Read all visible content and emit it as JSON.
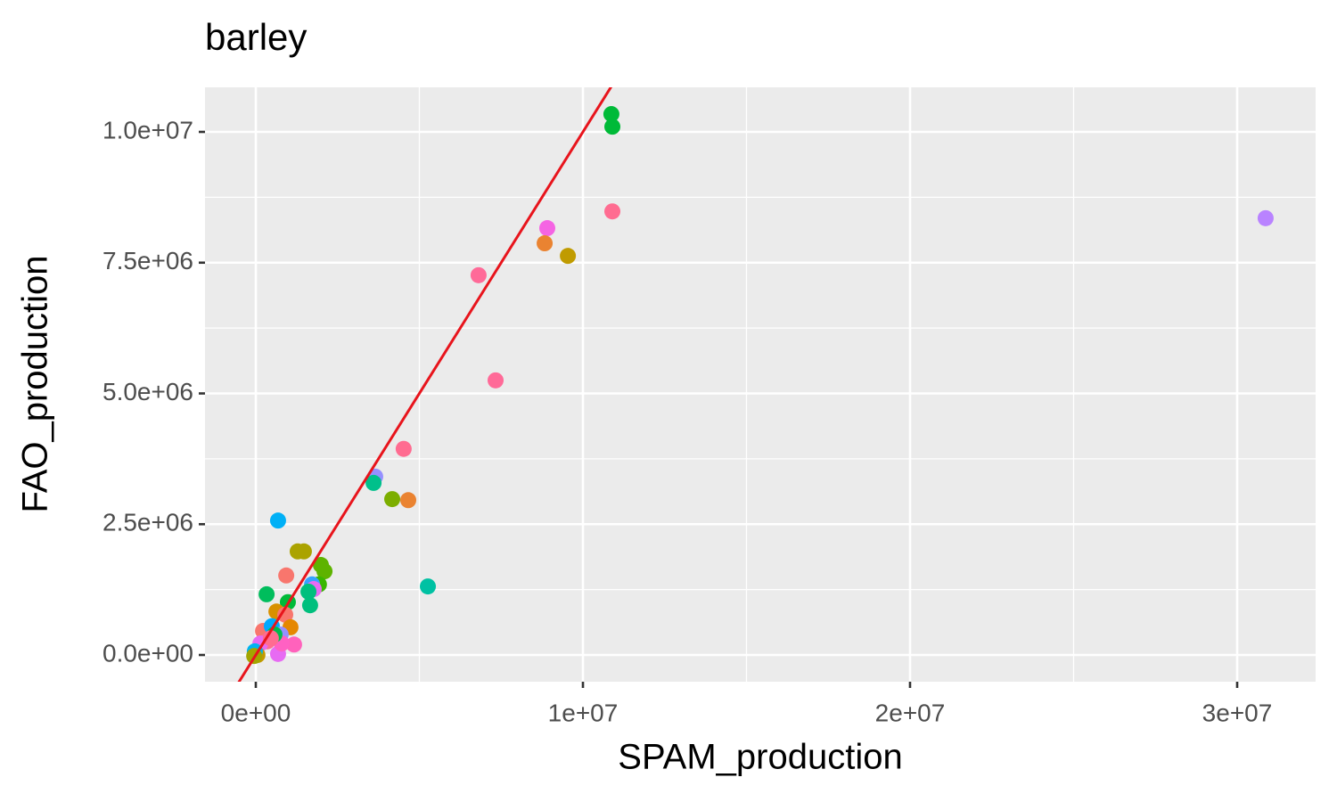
{
  "chart_data": {
    "type": "scatter",
    "title": "barley",
    "x_label": "SPAM_production",
    "y_label": "FAO_production",
    "xlim": [
      -1553000,
      32398000
    ],
    "ylim": [
      -511000,
      10852000
    ],
    "xticks": [
      {
        "value": 0,
        "label": "0e+00"
      },
      {
        "value": 10000000,
        "label": "1e+07"
      },
      {
        "value": 20000000,
        "label": "2e+07"
      },
      {
        "value": 30000000,
        "label": "3e+07"
      }
    ],
    "yticks": [
      {
        "value": 0,
        "label": "0.0e+00"
      },
      {
        "value": 2500000,
        "label": "2.5e+06"
      },
      {
        "value": 5000000,
        "label": "5.0e+06"
      },
      {
        "value": 7500000,
        "label": "7.5e+06"
      },
      {
        "value": 10000000,
        "label": "1.0e+07"
      }
    ],
    "x_minor_breaks": [
      5000000,
      15000000,
      25000000
    ],
    "y_minor_breaks": [
      1250000,
      3750000,
      6250000,
      8750000
    ],
    "grid": true,
    "reference_line": {
      "slope": 1,
      "intercept": 0,
      "color": "#e8141c"
    },
    "x": [
      10870000,
      10900000,
      10900000,
      30870000,
      8910000,
      8830000,
      9540000,
      6810000,
      7330000,
      4520000,
      3650000,
      3600000,
      4170000,
      4660000,
      680000,
      5260000,
      1280000,
      1470000,
      1990000,
      2100000,
      930000,
      1930000,
      1720000,
      1770000,
      1610000,
      330000,
      1660000,
      980000,
      630000,
      900000,
      1060000,
      220000,
      490000,
      760000,
      1170000,
      680000,
      790000,
      350000,
      140000,
      0,
      50000,
      -30000,
      -50000,
      570000,
      460000
    ],
    "y": [
      10340000,
      10100000,
      8480000,
      8350000,
      8160000,
      7870000,
      7630000,
      7260000,
      5250000,
      3940000,
      3410000,
      3290000,
      2980000,
      2960000,
      2570000,
      1310000,
      1980000,
      1980000,
      1720000,
      1600000,
      1520000,
      1350000,
      1350000,
      1260000,
      1210000,
      1160000,
      950000,
      1010000,
      830000,
      770000,
      530000,
      460000,
      550000,
      390000,
      200000,
      20000,
      220000,
      260000,
      220000,
      30000,
      0,
      70000,
      -20000,
      390000,
      320000
    ],
    "colors": [
      "#00BA38",
      "#00BA38",
      "#FF6C91",
      "#B983FF",
      "#F564E3",
      "#EA8331",
      "#C09B00",
      "#FF6A98",
      "#FF6A98",
      "#FF6C91",
      "#9590FF",
      "#00C08B",
      "#7CAE00",
      "#EA8331",
      "#00B0F6",
      "#00C1A3",
      "#ABA300",
      "#ABA300",
      "#5EB300",
      "#5EB300",
      "#F8766D",
      "#39B600",
      "#35A2FF",
      "#E76BF3",
      "#00BF7D",
      "#00BD5C",
      "#00BF7D",
      "#00BA38",
      "#D89000",
      "#F8766D",
      "#E58700",
      "#F8766D",
      "#00A9FF",
      "#9590FF",
      "#FF62BC",
      "#E76BF3",
      "#FF61C3",
      "#FF6C91",
      "#E76BF3",
      "#00BFC4",
      "#C49A00",
      "#00B4F0",
      "#A3A500",
      "#00BB4E",
      "#FF6C91"
    ]
  }
}
